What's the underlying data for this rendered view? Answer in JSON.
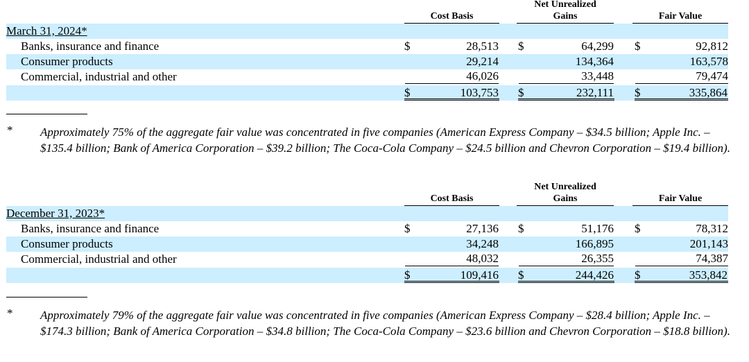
{
  "headers": {
    "cost_basis": "Cost Basis",
    "net_unrealized_line1": "Net Unrealized",
    "net_unrealized_line2": "Gains",
    "fair_value": "Fair Value"
  },
  "currency_symbol": "$",
  "tables": [
    {
      "date_label": "March 31, 2024*",
      "rows": [
        {
          "label": "Banks, insurance and finance",
          "cost_basis": "28,513",
          "net_unrealized_gains": "64,299",
          "fair_value": "92,812"
        },
        {
          "label": "Consumer products",
          "cost_basis": "29,214",
          "net_unrealized_gains": "134,364",
          "fair_value": "163,578"
        },
        {
          "label": "Commercial, industrial and other",
          "cost_basis": "46,026",
          "net_unrealized_gains": "33,448",
          "fair_value": "79,474"
        }
      ],
      "total": {
        "cost_basis": "103,753",
        "net_unrealized_gains": "232,111",
        "fair_value": "335,864"
      },
      "footnote_marker": "*",
      "footnote": "Approximately 75% of the aggregate fair value was concentrated in five companies (American Express Company – $34.5 billion; Apple Inc. – $135.4 billion; Bank of America Corporation – $39.2 billion; The Coca-Cola Company – $24.5 billion and Chevron Corporation – $19.4 billion)."
    },
    {
      "date_label": "December 31, 2023*",
      "rows": [
        {
          "label": "Banks, insurance and finance",
          "cost_basis": "27,136",
          "net_unrealized_gains": "51,176",
          "fair_value": "78,312"
        },
        {
          "label": "Consumer products",
          "cost_basis": "34,248",
          "net_unrealized_gains": "166,895",
          "fair_value": "201,143"
        },
        {
          "label": "Commercial, industrial and other",
          "cost_basis": "48,032",
          "net_unrealized_gains": "26,355",
          "fair_value": "74,387"
        }
      ],
      "total": {
        "cost_basis": "109,416",
        "net_unrealized_gains": "244,426",
        "fair_value": "353,842"
      },
      "footnote_marker": "*",
      "footnote": "Approximately 79% of the aggregate fair value was concentrated in five companies (American Express Company – $28.4 billion; Apple Inc. – $174.3 billion; Bank of America Corporation – $34.8 billion; The Coca-Cola Company – $23.6 billion and Chevron Corporation – $18.8 billion)."
    }
  ]
}
